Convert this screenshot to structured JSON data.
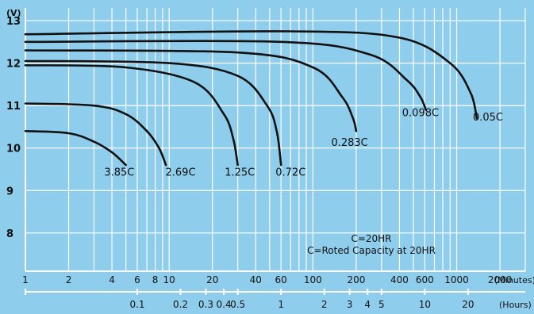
{
  "chart_data": {
    "type": "line",
    "title": "",
    "background_color": "#8fcdec",
    "grid_color": "#ffffff",
    "line_color": "#111111",
    "grid": true,
    "y_unit_label": "(V)",
    "y_ticks": [
      8,
      9,
      10,
      11,
      12,
      13
    ],
    "ylim": [
      7.1,
      13.3
    ],
    "x_scale": "log",
    "x_unit_label": "(Minutes)",
    "x_ticks": [
      1,
      2,
      4,
      6,
      8,
      10,
      20,
      40,
      60,
      100,
      200,
      400,
      600,
      1000,
      2000
    ],
    "xlim": [
      1,
      3000
    ],
    "x2_unit_label": "(Hours)",
    "x2_ticks": [
      {
        "label": "0.1",
        "minutes": 6
      },
      {
        "label": "0.2",
        "minutes": 12
      },
      {
        "label": "0.3",
        "minutes": 18
      },
      {
        "label": "0.4",
        "minutes": 24
      },
      {
        "label": "0.5",
        "minutes": 30
      },
      {
        "label": "1",
        "minutes": 60
      },
      {
        "label": "2",
        "minutes": 120
      },
      {
        "label": "3",
        "minutes": 180
      },
      {
        "label": "4",
        "minutes": 240
      },
      {
        "label": "5",
        "minutes": 300
      },
      {
        "label": "10",
        "minutes": 600
      },
      {
        "label": "20",
        "minutes": 1200
      }
    ],
    "series": [
      {
        "name": "3.85C",
        "label_at": [
          4.5,
          9.35
        ],
        "points": [
          [
            1,
            10.4
          ],
          [
            2,
            10.35
          ],
          [
            3,
            10.15
          ],
          [
            4,
            9.9
          ],
          [
            5,
            9.6
          ]
        ]
      },
      {
        "name": "2.69C",
        "label_at": [
          12,
          9.35
        ],
        "points": [
          [
            1,
            11.05
          ],
          [
            3,
            11.0
          ],
          [
            5,
            10.8
          ],
          [
            7,
            10.4
          ],
          [
            8.5,
            10.0
          ],
          [
            9.5,
            9.6
          ]
        ]
      },
      {
        "name": "1.25C",
        "label_at": [
          31,
          9.35
        ],
        "points": [
          [
            1,
            11.95
          ],
          [
            5,
            11.9
          ],
          [
            15,
            11.55
          ],
          [
            24,
            10.8
          ],
          [
            28,
            10.2
          ],
          [
            30,
            9.6
          ]
        ]
      },
      {
        "name": "0.72C",
        "label_at": [
          70,
          9.35
        ],
        "points": [
          [
            1,
            12.05
          ],
          [
            10,
            12.0
          ],
          [
            30,
            11.7
          ],
          [
            48,
            11.0
          ],
          [
            56,
            10.4
          ],
          [
            60,
            9.6
          ]
        ]
      },
      {
        "name": "0.283C",
        "label_at": [
          180,
          10.05
        ],
        "points": [
          [
            1,
            12.3
          ],
          [
            30,
            12.25
          ],
          [
            100,
            11.9
          ],
          [
            160,
            11.2
          ],
          [
            190,
            10.7
          ],
          [
            200,
            10.4
          ]
        ]
      },
      {
        "name": "0.098C",
        "label_at": [
          560,
          10.75
        ],
        "points": [
          [
            1,
            12.5
          ],
          [
            60,
            12.5
          ],
          [
            250,
            12.2
          ],
          [
            450,
            11.6
          ],
          [
            560,
            11.2
          ],
          [
            610,
            10.9
          ]
        ]
      },
      {
        "name": "0.05C",
        "label_at": [
          1650,
          10.65
        ],
        "points": [
          [
            1,
            12.68
          ],
          [
            70,
            12.75
          ],
          [
            400,
            12.6
          ],
          [
            900,
            12.0
          ],
          [
            1250,
            11.3
          ],
          [
            1380,
            10.7
          ]
        ]
      }
    ],
    "annotations": [
      "C=20HR",
      "C=Roted Capacity at 20HR"
    ]
  }
}
